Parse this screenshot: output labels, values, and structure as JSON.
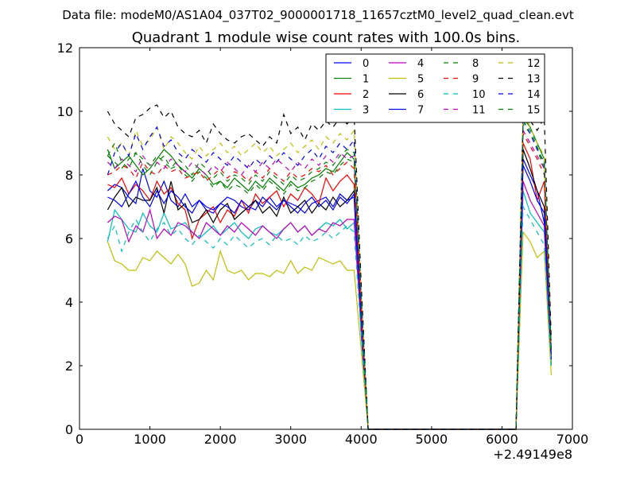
{
  "suptitle": "Data file: modeM0/AS1A04_037T02_9000001718_11657cztM0_level2_quad_clean.evt",
  "chart_data": {
    "type": "line",
    "title": "Quadrant 1 module wise count rates with 100.0s bins.",
    "xlabel": "",
    "ylabel": "",
    "offset_text": "+2.49149e8",
    "xlim": [
      0,
      7000
    ],
    "ylim": [
      0,
      12
    ],
    "xticks": [
      0,
      1000,
      2000,
      3000,
      4000,
      5000,
      6000,
      7000
    ],
    "yticks": [
      0,
      2,
      4,
      6,
      8,
      10,
      12
    ],
    "grid": false,
    "legend_position": "top-right",
    "legend_columns": 4,
    "x": [
      400,
      500,
      600,
      700,
      800,
      900,
      1000,
      1100,
      1200,
      1300,
      1400,
      1500,
      1600,
      1700,
      1800,
      1900,
      2000,
      2100,
      2200,
      2300,
      2400,
      2500,
      2600,
      2700,
      2800,
      2900,
      3000,
      3100,
      3200,
      3300,
      3400,
      3500,
      3600,
      3700,
      3800,
      3900,
      4000,
      4100,
      4200,
      4300,
      4400,
      4500,
      4600,
      4700,
      4800,
      4900,
      5000,
      5100,
      5200,
      5300,
      5400,
      5500,
      5600,
      5700,
      5800,
      5900,
      6000,
      6100,
      6200,
      6300,
      6400,
      6500,
      6600,
      6700
    ],
    "series": [
      {
        "name": "0",
        "color": "#0000ff",
        "dash": "solid",
        "values": [
          7.5,
          7.7,
          7.6,
          7.3,
          7.1,
          8.2,
          7.5,
          7.3,
          7.8,
          7.2,
          7.0,
          7.4,
          7.0,
          7.2,
          6.9,
          6.8,
          7.1,
          7.3,
          7.2,
          7.0,
          6.9,
          7.2,
          7.0,
          7.3,
          7.0,
          7.2,
          7.1,
          7.0,
          6.8,
          7.1,
          7.2,
          7.3,
          7.0,
          7.4,
          7.2,
          7.3,
          3.0,
          0,
          0,
          0,
          0,
          0,
          0,
          0,
          0,
          0,
          0,
          0,
          0,
          0,
          0,
          0,
          0,
          0,
          0,
          0,
          0,
          0,
          0,
          8.5,
          8.0,
          7.5,
          6.5,
          2.0
        ]
      },
      {
        "name": "1",
        "color": "#008000",
        "dash": "solid",
        "values": [
          8.8,
          8.2,
          8.4,
          8.6,
          8.3,
          8.0,
          8.2,
          8.5,
          8.8,
          8.6,
          8.3,
          8.1,
          7.9,
          8.2,
          8.0,
          7.7,
          7.8,
          7.6,
          7.9,
          7.7,
          7.5,
          7.8,
          7.6,
          7.9,
          7.7,
          7.5,
          7.8,
          7.6,
          7.7,
          7.9,
          8.0,
          8.2,
          8.1,
          8.4,
          8.7,
          8.5,
          4.0,
          0,
          0,
          0,
          0,
          0,
          0,
          0,
          0,
          0,
          0,
          0,
          0,
          0,
          0,
          0,
          0,
          0,
          0,
          0,
          0,
          0,
          0,
          9.8,
          9.5,
          9.0,
          8.5,
          2.5
        ]
      },
      {
        "name": "2",
        "color": "#ff0000",
        "dash": "solid",
        "values": [
          7.7,
          7.6,
          7.9,
          7.4,
          7.7,
          7.5,
          7.2,
          7.8,
          7.4,
          7.6,
          7.1,
          6.9,
          6.0,
          6.6,
          6.8,
          7.0,
          6.5,
          6.9,
          6.7,
          7.2,
          6.8,
          7.4,
          7.1,
          7.3,
          7.5,
          7.0,
          7.4,
          7.2,
          7.6,
          7.4,
          7.1,
          7.9,
          7.5,
          7.8,
          8.0,
          7.7,
          3.5,
          0,
          0,
          0,
          0,
          0,
          0,
          0,
          0,
          0,
          0,
          0,
          0,
          0,
          0,
          0,
          0,
          0,
          0,
          0,
          0,
          0,
          0,
          9.0,
          8.5,
          7.2,
          7.8,
          2.2
        ]
      },
      {
        "name": "3",
        "color": "#00bfbf",
        "dash": "solid",
        "values": [
          5.9,
          6.9,
          6.6,
          6.3,
          6.2,
          6.8,
          6.4,
          6.2,
          6.8,
          6.3,
          6.4,
          6.5,
          6.2,
          6.0,
          6.2,
          6.4,
          6.1,
          6.3,
          6.5,
          6.2,
          6.0,
          6.3,
          6.4,
          6.2,
          6.1,
          6.3,
          6.5,
          6.2,
          6.4,
          6.1,
          6.3,
          6.5,
          6.4,
          6.6,
          6.3,
          6.5,
          3.2,
          0,
          0,
          0,
          0,
          0,
          0,
          0,
          0,
          0,
          0,
          0,
          0,
          0,
          0,
          0,
          0,
          0,
          0,
          0,
          0,
          0,
          0,
          7.5,
          6.8,
          6.5,
          6.2,
          2.1
        ]
      },
      {
        "name": "4",
        "color": "#bf00bf",
        "dash": "solid",
        "values": [
          6.5,
          6.7,
          6.6,
          5.9,
          6.4,
          6.2,
          6.9,
          6.0,
          6.3,
          6.1,
          6.5,
          6.4,
          6.2,
          6.0,
          6.5,
          6.3,
          6.1,
          6.4,
          6.2,
          6.5,
          6.3,
          6.1,
          6.4,
          6.2,
          6.0,
          6.3,
          6.5,
          6.2,
          6.4,
          6.1,
          6.3,
          6.2,
          6.5,
          6.4,
          6.6,
          6.6,
          3.3,
          0,
          0,
          0,
          0,
          0,
          0,
          0,
          0,
          0,
          0,
          0,
          0,
          0,
          0,
          0,
          0,
          0,
          0,
          0,
          0,
          0,
          0,
          7.8,
          7.2,
          6.8,
          6.4,
          2.2
        ]
      },
      {
        "name": "5",
        "color": "#bfbf00",
        "dash": "solid",
        "values": [
          5.9,
          5.3,
          5.2,
          5.0,
          5.0,
          5.4,
          5.3,
          5.6,
          5.4,
          5.2,
          5.5,
          5.2,
          4.5,
          4.6,
          5.0,
          4.7,
          5.6,
          5.0,
          4.9,
          5.0,
          4.7,
          4.9,
          4.9,
          4.8,
          5.0,
          4.9,
          5.3,
          4.9,
          5.1,
          5.0,
          5.4,
          5.3,
          5.2,
          5.3,
          5.0,
          5.0,
          2.5,
          0,
          0,
          0,
          0,
          0,
          0,
          0,
          0,
          0,
          0,
          0,
          0,
          0,
          0,
          0,
          0,
          0,
          0,
          0,
          0,
          0,
          0,
          6.2,
          5.9,
          5.4,
          5.6,
          1.7
        ]
      },
      {
        "name": "6",
        "color": "#000000",
        "dash": "solid",
        "values": [
          6.9,
          7.3,
          7.6,
          7.0,
          7.3,
          7.2,
          7.2,
          7.6,
          6.8,
          7.8,
          6.9,
          7.1,
          6.5,
          6.6,
          6.9,
          6.5,
          6.9,
          7.1,
          6.6,
          6.8,
          7.0,
          7.2,
          6.8,
          7.0,
          6.7,
          7.3,
          6.8,
          7.0,
          7.2,
          6.8,
          7.1,
          6.9,
          7.3,
          7.0,
          7.2,
          7.5,
          3.6,
          0,
          0,
          0,
          0,
          0,
          0,
          0,
          0,
          0,
          0,
          0,
          0,
          0,
          0,
          0,
          0,
          0,
          0,
          0,
          0,
          0,
          0,
          8.8,
          8.2,
          7.5,
          7.0,
          2.3
        ]
      },
      {
        "name": "7",
        "color": "#0000ff",
        "dash": "solid",
        "values": [
          7.3,
          7.2,
          7.0,
          7.4,
          7.8,
          7.3,
          7.0,
          7.5,
          7.1,
          7.5,
          7.3,
          7.0,
          6.8,
          7.2,
          7.0,
          6.9,
          7.1,
          7.0,
          6.8,
          7.2,
          7.0,
          6.9,
          7.3,
          7.1,
          6.9,
          7.2,
          7.0,
          6.8,
          7.1,
          7.3,
          7.0,
          7.2,
          6.9,
          7.3,
          7.1,
          7.4,
          3.5,
          0,
          0,
          0,
          0,
          0,
          0,
          0,
          0,
          0,
          0,
          0,
          0,
          0,
          0,
          0,
          0,
          0,
          0,
          0,
          0,
          0,
          0,
          8.3,
          7.8,
          7.2,
          6.8,
          2.2
        ]
      },
      {
        "name": "8",
        "color": "#008000",
        "dash": "dashed",
        "values": [
          8.6,
          8.4,
          8.2,
          8.5,
          8.7,
          8.3,
          8.0,
          8.4,
          8.6,
          8.2,
          8.3,
          8.0,
          7.8,
          8.1,
          7.9,
          7.6,
          7.8,
          7.5,
          7.7,
          7.6,
          7.4,
          7.7,
          7.5,
          7.8,
          7.6,
          7.4,
          7.7,
          7.5,
          7.6,
          7.8,
          7.9,
          8.1,
          8.0,
          8.3,
          8.5,
          8.4,
          3.9,
          0,
          0,
          0,
          0,
          0,
          0,
          0,
          0,
          0,
          0,
          0,
          0,
          0,
          0,
          0,
          0,
          0,
          0,
          0,
          0,
          0,
          0,
          9.6,
          9.3,
          8.8,
          8.2,
          2.4
        ]
      },
      {
        "name": "9",
        "color": "#ff0000",
        "dash": "dashed",
        "values": [
          8.0,
          8.1,
          8.3,
          8.2,
          7.9,
          8.4,
          8.1,
          8.0,
          8.3,
          8.1,
          8.2,
          7.9,
          8.0,
          8.1,
          7.8,
          8.0,
          8.2,
          7.9,
          8.1,
          8.0,
          7.8,
          8.1,
          7.9,
          8.2,
          8.0,
          7.8,
          8.1,
          7.9,
          8.0,
          8.2,
          8.1,
          8.3,
          8.0,
          8.2,
          8.4,
          8.2,
          3.8,
          0,
          0,
          0,
          0,
          0,
          0,
          0,
          0,
          0,
          0,
          0,
          0,
          0,
          0,
          0,
          0,
          0,
          0,
          0,
          0,
          0,
          0,
          9.3,
          8.9,
          8.5,
          8.0,
          2.3
        ]
      },
      {
        "name": "10",
        "color": "#00bfbf",
        "dash": "dashed",
        "values": [
          6.0,
          6.4,
          5.6,
          6.2,
          6.6,
          6.2,
          5.9,
          6.3,
          6.5,
          6.1,
          6.3,
          6.0,
          5.8,
          6.1,
          5.9,
          5.7,
          6.0,
          5.8,
          6.1,
          5.9,
          5.7,
          5.9,
          6.0,
          5.8,
          6.1,
          5.9,
          6.0,
          5.8,
          6.1,
          5.9,
          6.0,
          6.2,
          6.0,
          6.2,
          6.4,
          6.2,
          3.0,
          0,
          0,
          0,
          0,
          0,
          0,
          0,
          0,
          0,
          0,
          0,
          0,
          0,
          0,
          0,
          0,
          0,
          0,
          0,
          0,
          0,
          0,
          7.0,
          6.6,
          6.2,
          5.8,
          2.0
        ]
      },
      {
        "name": "11",
        "color": "#bf00bf",
        "dash": "dashed",
        "values": [
          8.4,
          8.2,
          8.5,
          8.3,
          8.1,
          8.6,
          8.3,
          8.4,
          8.2,
          8.5,
          8.3,
          8.1,
          8.4,
          8.2,
          8.0,
          8.3,
          8.1,
          8.4,
          8.2,
          8.0,
          8.3,
          8.1,
          8.4,
          8.2,
          8.5,
          8.3,
          8.1,
          8.4,
          8.2,
          8.5,
          8.3,
          8.6,
          8.4,
          8.7,
          8.5,
          8.6,
          4.0,
          0,
          0,
          0,
          0,
          0,
          0,
          0,
          0,
          0,
          0,
          0,
          0,
          0,
          0,
          0,
          0,
          0,
          0,
          0,
          0,
          0,
          0,
          9.4,
          9.0,
          8.6,
          8.2,
          2.4
        ]
      },
      {
        "name": "12",
        "color": "#bfbf00",
        "dash": "dashed",
        "values": [
          9.2,
          8.8,
          9.0,
          8.6,
          9.4,
          8.9,
          9.1,
          9.5,
          8.8,
          9.2,
          9.0,
          8.7,
          8.5,
          8.9,
          8.6,
          8.8,
          9.0,
          8.7,
          8.9,
          8.6,
          8.8,
          9.0,
          8.7,
          8.9,
          8.6,
          8.8,
          9.0,
          8.7,
          8.9,
          9.1,
          8.8,
          9.2,
          9.0,
          9.3,
          9.1,
          9.4,
          4.3,
          0,
          0,
          0,
          0,
          0,
          0,
          0,
          0,
          0,
          0,
          0,
          0,
          0,
          0,
          0,
          0,
          0,
          0,
          0,
          0,
          0,
          0,
          10.0,
          9.5,
          9.0,
          8.6,
          2.6
        ]
      },
      {
        "name": "13",
        "color": "#000000",
        "dash": "dashed",
        "values": [
          10.0,
          9.6,
          9.4,
          9.2,
          9.8,
          9.9,
          10.1,
          10.2,
          9.8,
          10.0,
          9.5,
          9.3,
          9.2,
          9.4,
          9.0,
          9.6,
          9.3,
          9.1,
          9.0,
          9.2,
          9.3,
          9.1,
          8.9,
          9.2,
          9.0,
          9.9,
          9.3,
          9.5,
          9.1,
          9.6,
          9.4,
          9.7,
          9.5,
          9.8,
          9.6,
          9.9,
          4.6,
          0,
          0,
          0,
          0,
          0,
          0,
          0,
          0,
          0,
          0,
          0,
          0,
          0,
          0,
          0,
          0,
          0,
          0,
          0,
          0,
          0,
          0,
          9.9,
          9.7,
          9.4,
          9.8,
          2.8
        ]
      },
      {
        "name": "14",
        "color": "#0000ff",
        "dash": "dashed",
        "values": [
          8.0,
          8.7,
          9.0,
          8.6,
          9.3,
          8.8,
          9.2,
          9.5,
          8.9,
          9.1,
          8.7,
          8.5,
          8.8,
          8.6,
          8.4,
          8.7,
          8.5,
          8.3,
          8.6,
          8.4,
          8.2,
          8.5,
          8.3,
          8.6,
          8.4,
          8.7,
          8.5,
          8.3,
          8.6,
          8.8,
          8.5,
          8.9,
          8.7,
          9.0,
          8.8,
          9.1,
          4.2,
          0,
          0,
          0,
          0,
          0,
          0,
          0,
          0,
          0,
          0,
          0,
          0,
          0,
          0,
          0,
          0,
          0,
          0,
          0,
          0,
          0,
          0,
          9.7,
          9.3,
          8.8,
          8.4,
          2.5
        ]
      },
      {
        "name": "15",
        "color": "#008000",
        "dash": "dashed",
        "values": [
          8.6,
          9.0,
          8.4,
          8.2,
          8.7,
          8.5,
          8.3,
          8.6,
          8.4,
          8.2,
          8.5,
          8.3,
          8.0,
          8.4,
          8.2,
          7.9,
          8.1,
          7.8,
          8.0,
          7.9,
          7.7,
          8.0,
          7.8,
          8.1,
          7.9,
          7.7,
          8.0,
          7.8,
          7.9,
          8.1,
          8.2,
          8.4,
          8.3,
          8.6,
          8.8,
          8.7,
          4.1,
          0,
          0,
          0,
          0,
          0,
          0,
          0,
          0,
          0,
          0,
          0,
          0,
          0,
          0,
          0,
          0,
          0,
          0,
          0,
          0,
          0,
          0,
          9.7,
          9.4,
          8.9,
          8.3,
          2.5
        ]
      }
    ]
  }
}
